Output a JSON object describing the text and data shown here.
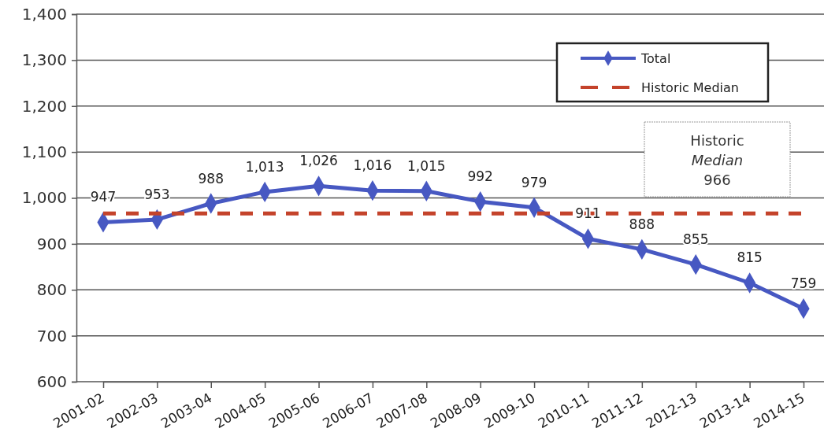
{
  "chart_data": {
    "type": "line",
    "categories": [
      "2001-02",
      "2002-03",
      "2003-04",
      "2004-05",
      "2005-06",
      "2006-07",
      "2007-08",
      "2008-09",
      "2009-10",
      "2010-11",
      "2011-12",
      "2012-13",
      "2013-14",
      "2014-15"
    ],
    "series": [
      {
        "name": "Total",
        "color": "#4758c2",
        "marker": "diamond",
        "line_style": "solid",
        "values": [
          947,
          953,
          988,
          1013,
          1026,
          1016,
          1015,
          992,
          979,
          911,
          888,
          855,
          815,
          759
        ],
        "value_labels": [
          "947",
          "953",
          "988",
          "1,013",
          "1,026",
          "1,016",
          "1,015",
          "992",
          "979",
          "911",
          "888",
          "855",
          "815",
          "759"
        ]
      },
      {
        "name": "Historic Median",
        "color": "#c4432b",
        "marker": "none",
        "line_style": "dashed",
        "values": [
          966,
          966,
          966,
          966,
          966,
          966,
          966,
          966,
          966,
          966,
          966,
          966,
          966,
          966
        ]
      }
    ],
    "ylim": [
      600,
      1400
    ],
    "yticks": [
      600,
      700,
      800,
      900,
      {
        "value": 1000,
        "label": "1,000"
      },
      {
        "value": 1100,
        "label": "1,100"
      },
      {
        "value": 1200,
        "label": "1,200"
      },
      {
        "value": 1300,
        "label": "1,300"
      },
      {
        "value": 1400,
        "label": "1,400"
      }
    ],
    "grid": "y",
    "legend": "top right",
    "annotations": [
      "Historic Median 966"
    ]
  }
}
